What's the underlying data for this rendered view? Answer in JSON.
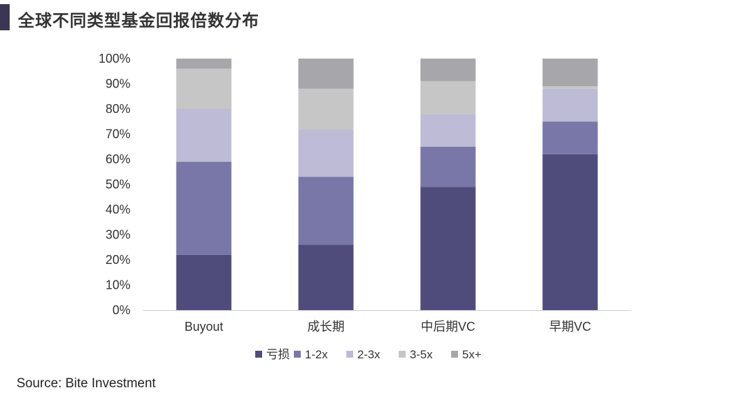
{
  "title": "全球不同类型基金回报倍数分布",
  "source": "Source: Bite Investment",
  "chart_data": {
    "type": "bar",
    "stacked": true,
    "categories": [
      "Buyout",
      "成长期",
      "中后期VC",
      "早期VC"
    ],
    "series": [
      {
        "name": "亏损",
        "color": "#4f4c7c",
        "values": [
          22,
          26,
          49,
          62
        ]
      },
      {
        "name": "1-2x",
        "color": "#7877a8",
        "values": [
          37,
          27,
          16,
          13
        ]
      },
      {
        "name": "2-3x",
        "color": "#bebbd6",
        "values": [
          21,
          19,
          13,
          13
        ]
      },
      {
        "name": "3-5x",
        "color": "#c6c6c6",
        "values": [
          16,
          16,
          13,
          1
        ]
      },
      {
        "name": "5x+",
        "color": "#a6a6ab",
        "values": [
          4,
          12,
          9,
          11
        ]
      }
    ],
    "yticks": [
      "0%",
      "10%",
      "20%",
      "30%",
      "40%",
      "50%",
      "60%",
      "70%",
      "80%",
      "90%",
      "100%"
    ],
    "ylim": [
      0,
      100
    ],
    "grid": false,
    "legend": "bottom"
  }
}
